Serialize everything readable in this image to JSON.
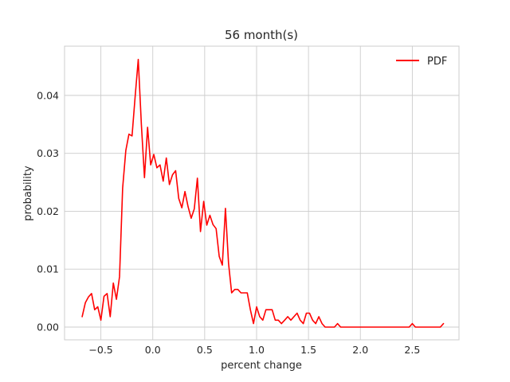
{
  "chart_data": {
    "type": "line",
    "title": "56 month(s)",
    "xlabel": "percent change",
    "ylabel": "probability",
    "xlim": [
      -0.85,
      2.95
    ],
    "ylim": [
      -0.0022,
      0.0485
    ],
    "x_ticks": [
      -0.5,
      0.0,
      0.5,
      1.0,
      1.5,
      2.0,
      2.5
    ],
    "x_tick_labels": [
      "−0.5",
      "0.0",
      "0.5",
      "1.0",
      "1.5",
      "2.0",
      "2.5"
    ],
    "y_ticks": [
      0.0,
      0.01,
      0.02,
      0.03,
      0.04
    ],
    "y_tick_labels": [
      "0.00",
      "0.01",
      "0.02",
      "0.03",
      "0.04"
    ],
    "grid": true,
    "legend": {
      "position": "top-right"
    },
    "series": [
      {
        "name": "PDF",
        "color": "#ff0000",
        "x": [
          -0.68,
          -0.65,
          -0.62,
          -0.59,
          -0.56,
          -0.53,
          -0.5,
          -0.47,
          -0.44,
          -0.41,
          -0.38,
          -0.35,
          -0.32,
          -0.29,
          -0.26,
          -0.23,
          -0.2,
          -0.17,
          -0.14,
          -0.11,
          -0.08,
          -0.05,
          -0.02,
          0.01,
          0.04,
          0.07,
          0.1,
          0.13,
          0.16,
          0.19,
          0.22,
          0.25,
          0.28,
          0.31,
          0.34,
          0.37,
          0.4,
          0.43,
          0.46,
          0.49,
          0.52,
          0.55,
          0.58,
          0.61,
          0.64,
          0.67,
          0.7,
          0.73,
          0.76,
          0.79,
          0.82,
          0.85,
          0.88,
          0.91,
          0.94,
          0.97,
          1.0,
          1.03,
          1.06,
          1.09,
          1.12,
          1.15,
          1.18,
          1.21,
          1.24,
          1.27,
          1.3,
          1.33,
          1.36,
          1.39,
          1.42,
          1.45,
          1.48,
          1.51,
          1.54,
          1.57,
          1.6,
          1.63,
          1.66,
          1.69,
          1.72,
          1.75,
          1.78,
          1.81,
          1.84,
          1.87,
          1.9,
          1.93,
          1.96,
          1.99,
          2.02,
          2.05,
          2.08,
          2.11,
          2.14,
          2.17,
          2.2,
          2.23,
          2.26,
          2.29,
          2.32,
          2.35,
          2.38,
          2.41,
          2.44,
          2.47,
          2.5,
          2.53,
          2.56,
          2.59,
          2.62,
          2.65,
          2.68,
          2.71,
          2.74,
          2.77,
          2.8
        ],
        "values": [
          0.0018,
          0.0042,
          0.0052,
          0.0058,
          0.003,
          0.0035,
          0.0012,
          0.0053,
          0.0058,
          0.0018,
          0.0076,
          0.0048,
          0.0087,
          0.024,
          0.0305,
          0.0333,
          0.033,
          0.0398,
          0.0462,
          0.035,
          0.0258,
          0.0345,
          0.028,
          0.0298,
          0.0275,
          0.028,
          0.0252,
          0.0292,
          0.0246,
          0.0263,
          0.027,
          0.0222,
          0.0206,
          0.0234,
          0.0208,
          0.0188,
          0.0204,
          0.0257,
          0.0165,
          0.0217,
          0.0176,
          0.0193,
          0.0177,
          0.017,
          0.0122,
          0.0107,
          0.0205,
          0.011,
          0.0059,
          0.0065,
          0.0065,
          0.0059,
          0.0059,
          0.0059,
          0.003,
          0.0006,
          0.0035,
          0.0018,
          0.0012,
          0.003,
          0.003,
          0.003,
          0.0012,
          0.0012,
          0.0006,
          0.0012,
          0.0018,
          0.0012,
          0.0018,
          0.0024,
          0.0012,
          0.0006,
          0.0024,
          0.0024,
          0.0012,
          0.0006,
          0.0018,
          0.0006,
          0.0,
          0.0,
          0.0,
          0.0,
          0.0006,
          0.0,
          0.0,
          0.0,
          0.0,
          0.0,
          0.0,
          0.0,
          0.0,
          0.0,
          0.0,
          0.0,
          0.0,
          0.0,
          0.0,
          0.0,
          0.0,
          0.0,
          0.0,
          0.0,
          0.0,
          0.0,
          0.0,
          0.0,
          0.0006,
          0.0,
          0.0,
          0.0,
          0.0,
          0.0,
          0.0,
          0.0,
          0.0,
          0.0,
          0.0006
        ]
      }
    ]
  }
}
